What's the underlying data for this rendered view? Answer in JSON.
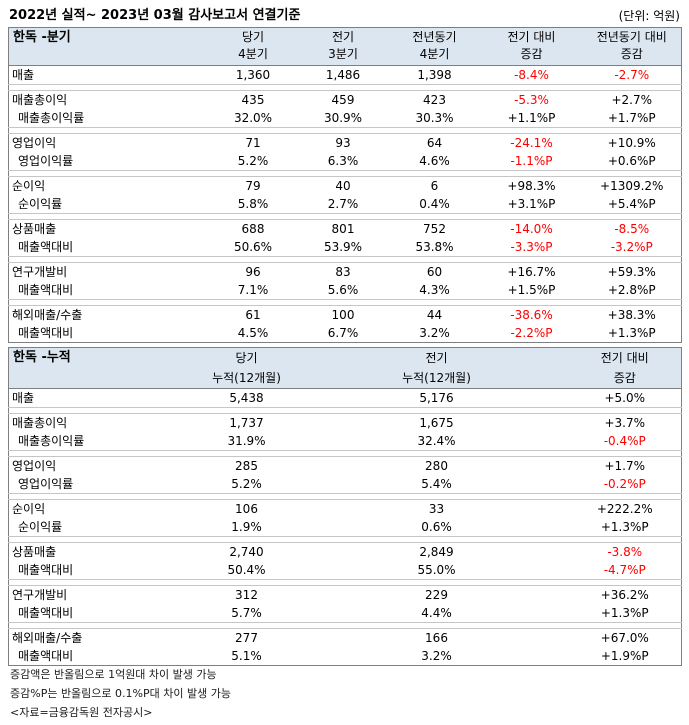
{
  "title": "2022년 실적~ 2023년 03월 감사보고서 연결기준",
  "unit": "(단위: 억원)",
  "colors": {
    "header_background": "#dce6f1",
    "negative": "#ff0000",
    "border": "#7f7f7f",
    "separator": "#c6c6c6"
  },
  "quarterly": {
    "label": "한독 -분기",
    "columns": [
      {
        "title": "당기",
        "subtitle": "4분기"
      },
      {
        "title": "전기",
        "subtitle": "3분기"
      },
      {
        "title": "전년동기",
        "subtitle": "4분기"
      },
      {
        "title": "전기 대비",
        "subtitle": "증감"
      },
      {
        "title": "전년동기 대비",
        "subtitle": "증감"
      }
    ],
    "groups": [
      {
        "main": {
          "label": "매출",
          "values": [
            "1,360",
            "1,486",
            "1,398",
            "-8.4%",
            "-2.7%"
          ]
        }
      },
      {
        "main": {
          "label": "매출총이익",
          "values": [
            "435",
            "459",
            "423",
            "-5.3%",
            "+2.7%"
          ]
        },
        "sub": {
          "label": "매출총이익률",
          "values": [
            "32.0%",
            "30.9%",
            "30.3%",
            "+1.1%P",
            "+1.7%P"
          ]
        }
      },
      {
        "main": {
          "label": "영업이익",
          "values": [
            "71",
            "93",
            "64",
            "-24.1%",
            "+10.9%"
          ]
        },
        "sub": {
          "label": "영업이익률",
          "values": [
            "5.2%",
            "6.3%",
            "4.6%",
            "-1.1%P",
            "+0.6%P"
          ]
        }
      },
      {
        "main": {
          "label": "순이익",
          "values": [
            "79",
            "40",
            "6",
            "+98.3%",
            "+1309.2%"
          ]
        },
        "sub": {
          "label": "순이익률",
          "values": [
            "5.8%",
            "2.7%",
            "0.4%",
            "+3.1%P",
            "+5.4%P"
          ]
        }
      },
      {
        "main": {
          "label": "상품매출",
          "values": [
            "688",
            "801",
            "752",
            "-14.0%",
            "-8.5%"
          ]
        },
        "sub": {
          "label": "매출액대비",
          "values": [
            "50.6%",
            "53.9%",
            "53.8%",
            "-3.3%P",
            "-3.2%P"
          ]
        }
      },
      {
        "main": {
          "label": "연구개발비",
          "values": [
            "96",
            "83",
            "60",
            "+16.7%",
            "+59.3%"
          ]
        },
        "sub": {
          "label": "매출액대비",
          "values": [
            "7.1%",
            "5.6%",
            "4.3%",
            "+1.5%P",
            "+2.8%P"
          ]
        }
      },
      {
        "main": {
          "label": "해외매출/수출",
          "values": [
            "61",
            "100",
            "44",
            "-38.6%",
            "+38.3%"
          ]
        },
        "sub": {
          "label": "매출액대비",
          "values": [
            "4.5%",
            "6.7%",
            "3.2%",
            "-2.2%P",
            "+1.3%P"
          ]
        }
      }
    ]
  },
  "cumulative": {
    "label": "한독 -누적",
    "columns": [
      {
        "title": "당기",
        "subtitle": "누적(12개월)"
      },
      {
        "title": "전기",
        "subtitle": "누적(12개월)"
      },
      {
        "title": "전기 대비",
        "subtitle": "증감"
      }
    ],
    "groups": [
      {
        "main": {
          "label": "매출",
          "values": [
            "5,438",
            "5,176",
            "+5.0%"
          ]
        }
      },
      {
        "main": {
          "label": "매출총이익",
          "values": [
            "1,737",
            "1,675",
            "+3.7%"
          ]
        },
        "sub": {
          "label": "매출총이익률",
          "values": [
            "31.9%",
            "32.4%",
            "-0.4%P"
          ]
        }
      },
      {
        "main": {
          "label": "영업이익",
          "values": [
            "285",
            "280",
            "+1.7%"
          ]
        },
        "sub": {
          "label": "영업이익률",
          "values": [
            "5.2%",
            "5.4%",
            "-0.2%P"
          ]
        }
      },
      {
        "main": {
          "label": "순이익",
          "values": [
            "106",
            "33",
            "+222.2%"
          ]
        },
        "sub": {
          "label": "순이익률",
          "values": [
            "1.9%",
            "0.6%",
            "+1.3%P"
          ]
        }
      },
      {
        "main": {
          "label": "상품매출",
          "values": [
            "2,740",
            "2,849",
            "-3.8%"
          ]
        },
        "sub": {
          "label": "매출액대비",
          "values": [
            "50.4%",
            "55.0%",
            "-4.7%P"
          ]
        }
      },
      {
        "main": {
          "label": "연구개발비",
          "values": [
            "312",
            "229",
            "+36.2%"
          ]
        },
        "sub": {
          "label": "매출액대비",
          "values": [
            "5.7%",
            "4.4%",
            "+1.3%P"
          ]
        }
      },
      {
        "main": {
          "label": "해외매출/수출",
          "values": [
            "277",
            "166",
            "+67.0%"
          ]
        },
        "sub": {
          "label": "매출액대비",
          "values": [
            "5.1%",
            "3.2%",
            "+1.9%P"
          ]
        }
      }
    ]
  },
  "footnotes": [
    "증감액은 반올림으로 1억원대 차이 발생 가능",
    "증감%P는 반올림으로 0.1%P대 차이 발생 가능",
    "<자료=금융감독원 전자공시>"
  ]
}
